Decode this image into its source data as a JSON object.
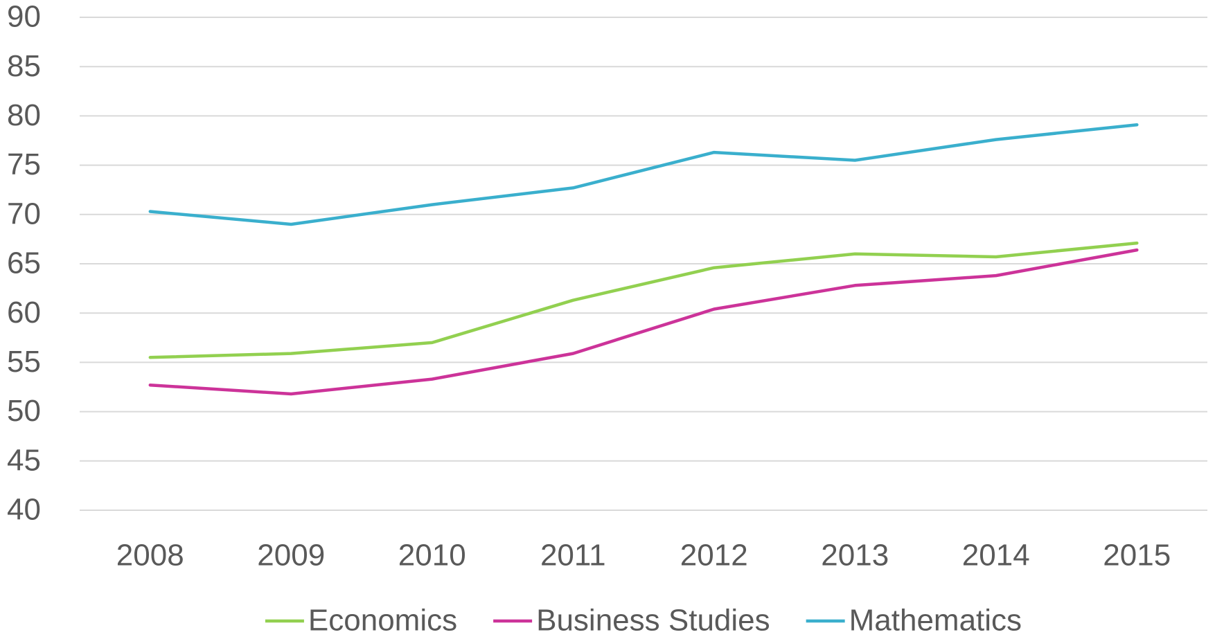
{
  "chart_data": {
    "type": "line",
    "categories": [
      "2008",
      "2009",
      "2010",
      "2011",
      "2012",
      "2013",
      "2014",
      "2015"
    ],
    "series": [
      {
        "name": "Economics",
        "color": "#92d050",
        "values": [
          55.5,
          55.9,
          57.0,
          61.3,
          64.6,
          66.0,
          65.7,
          67.1
        ]
      },
      {
        "name": "Business Studies",
        "color": "#cc3399",
        "values": [
          52.7,
          51.8,
          53.3,
          55.9,
          60.4,
          62.8,
          63.8,
          66.4
        ]
      },
      {
        "name": "Mathematics",
        "color": "#3aafcd",
        "values": [
          70.3,
          69.0,
          71.0,
          72.7,
          76.3,
          75.5,
          77.6,
          79.1
        ]
      }
    ],
    "ylim": [
      40,
      90
    ],
    "yticks": [
      40,
      45,
      50,
      55,
      60,
      65,
      70,
      75,
      80,
      85,
      90
    ],
    "grid": true,
    "legend": "bottom"
  }
}
